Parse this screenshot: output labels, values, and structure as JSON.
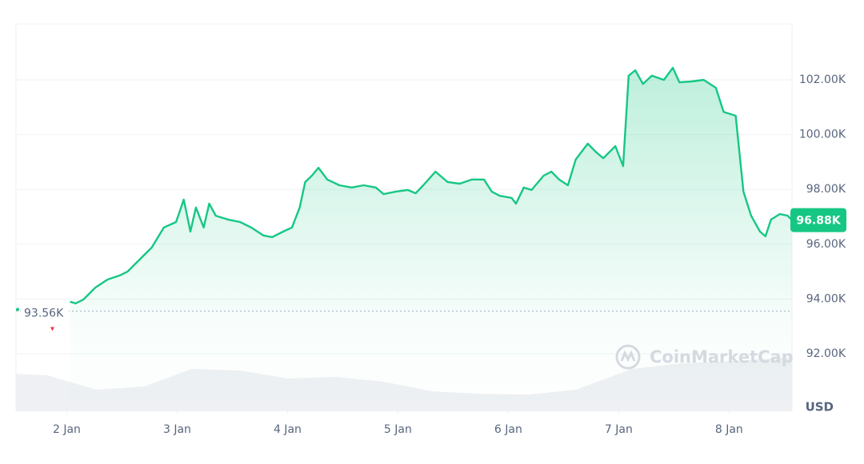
{
  "chart_data": {
    "type": "line",
    "color": "#16c784",
    "x": [
      2.03,
      2.08,
      2.15,
      2.26,
      2.37,
      2.48,
      2.55,
      2.66,
      2.77,
      2.88,
      2.99,
      3.06,
      3.12,
      3.17,
      3.24,
      3.29,
      3.35,
      3.46,
      3.57,
      3.67,
      3.78,
      3.86,
      3.96,
      4.04,
      4.11,
      4.16,
      4.22,
      4.28,
      4.36,
      4.47,
      4.58,
      4.69,
      4.8,
      4.87,
      4.98,
      5.09,
      5.16,
      5.23,
      5.34,
      5.45,
      5.56,
      5.67,
      5.78,
      5.85,
      5.92,
      6.03,
      6.07,
      6.14,
      6.21,
      6.32,
      6.39,
      6.46,
      6.54,
      6.61,
      6.72,
      6.79,
      6.86,
      6.97,
      7.04,
      7.09,
      7.15,
      7.22,
      7.3,
      7.41,
      7.49,
      7.55,
      7.66,
      7.77,
      7.88,
      7.95,
      8.06,
      8.13,
      8.2,
      8.28,
      8.33,
      8.38,
      8.46,
      8.53,
      8.57
    ],
    "values": [
      93900,
      93840,
      93980,
      94420,
      94710,
      94860,
      95000,
      95440,
      95880,
      96610,
      96810,
      97630,
      96460,
      97340,
      96610,
      97480,
      97040,
      96900,
      96810,
      96610,
      96320,
      96260,
      96460,
      96610,
      97340,
      98270,
      98500,
      98790,
      98360,
      98150,
      98070,
      98150,
      98070,
      97830,
      97920,
      97980,
      97860,
      98150,
      98650,
      98270,
      98210,
      98360,
      98360,
      97920,
      97770,
      97690,
      97480,
      98070,
      97980,
      98500,
      98650,
      98360,
      98150,
      99090,
      99670,
      99380,
      99140,
      99580,
      98850,
      102150,
      102350,
      101850,
      102150,
      102000,
      102440,
      101910,
      101940,
      102000,
      101710,
      100830,
      100690,
      97920,
      97040,
      96460,
      96290,
      96900,
      97100,
      97040,
      96880
    ],
    "xlim": [
      1.54,
      8.57
    ],
    "xticks": [
      {
        "value": 2,
        "label": "2 Jan"
      },
      {
        "value": 3,
        "label": "3 Jan"
      },
      {
        "value": 4,
        "label": "4 Jan"
      },
      {
        "value": 5,
        "label": "5 Jan"
      },
      {
        "value": 6,
        "label": "6 Jan"
      },
      {
        "value": 7,
        "label": "7 Jan"
      },
      {
        "value": 8,
        "label": "8 Jan"
      }
    ],
    "ylim": [
      89900,
      104040
    ],
    "yticks": [
      {
        "value": 92000,
        "label": "92.00K"
      },
      {
        "value": 94000,
        "label": "94.00K"
      },
      {
        "value": 96000,
        "label": "96.00K"
      },
      {
        "value": 98000,
        "label": "98.00K"
      },
      {
        "value": 100000,
        "label": "100.00K"
      },
      {
        "value": 102000,
        "label": "102.00K"
      }
    ],
    "grid": true,
    "y_unit_label": "USD",
    "watermark": "CoinMarketCap",
    "current_price": {
      "value": 96880,
      "label": "96.88K"
    },
    "open_price": {
      "value": 93560,
      "label": "93.56K"
    }
  }
}
